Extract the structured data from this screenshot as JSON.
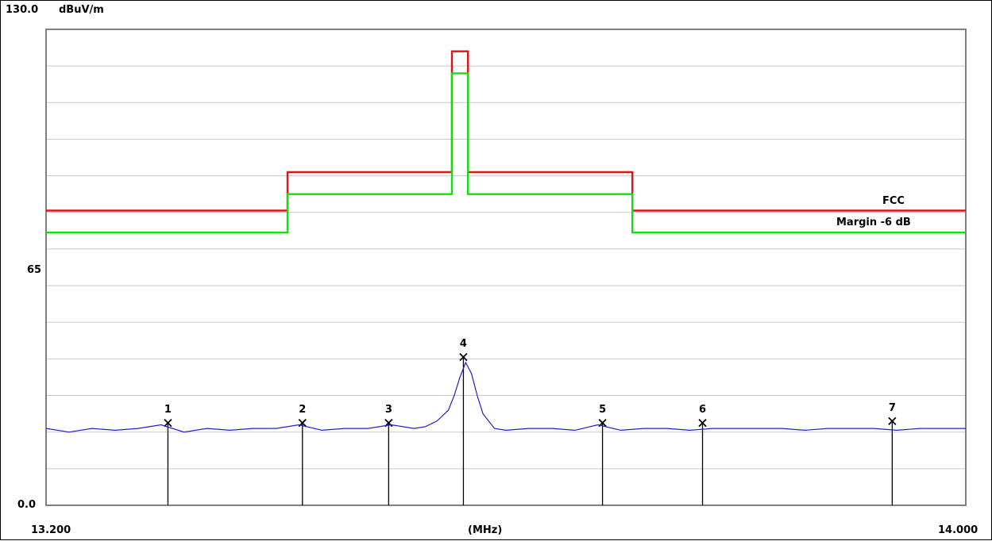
{
  "chart_data": {
    "type": "line",
    "title": "",
    "y_unit_label": "dBuV/m",
    "xlabel": "(MHz)",
    "x_range": [
      13.2,
      14.0
    ],
    "x_range_labels": [
      "13.200",
      "14.000"
    ],
    "ylim": [
      0,
      130
    ],
    "y_tick_labels": [
      {
        "value": 130,
        "text": "130.0"
      },
      {
        "value": 65,
        "text": "65"
      },
      {
        "value": 0,
        "text": "0.0"
      }
    ],
    "grid": true,
    "grid_step": 10,
    "limits": [
      {
        "name": "FCC",
        "color": "#e81010",
        "points": [
          [
            13.2,
            80.5
          ],
          [
            13.41,
            80.5
          ],
          [
            13.41,
            91
          ],
          [
            13.553,
            91
          ],
          [
            13.553,
            124
          ],
          [
            13.567,
            124
          ],
          [
            13.567,
            91
          ],
          [
            13.71,
            91
          ],
          [
            13.71,
            80.5
          ],
          [
            14.0,
            80.5
          ]
        ]
      },
      {
        "name": "Margin -6 dB",
        "color": "#10e010",
        "points": [
          [
            13.2,
            74.5
          ],
          [
            13.41,
            74.5
          ],
          [
            13.41,
            85
          ],
          [
            13.553,
            85
          ],
          [
            13.553,
            118
          ],
          [
            13.567,
            118
          ],
          [
            13.567,
            85
          ],
          [
            13.71,
            85
          ],
          [
            13.71,
            74.5
          ],
          [
            14.0,
            74.5
          ]
        ]
      }
    ],
    "series": [
      {
        "color": "#2020d0",
        "x": [
          13.2,
          13.22,
          13.24,
          13.26,
          13.28,
          13.3,
          13.32,
          13.34,
          13.36,
          13.38,
          13.4,
          13.42,
          13.44,
          13.46,
          13.48,
          13.5,
          13.52,
          13.53,
          13.54,
          13.55,
          13.555,
          13.56,
          13.565,
          13.57,
          13.575,
          13.58,
          13.59,
          13.6,
          13.62,
          13.64,
          13.66,
          13.68,
          13.7,
          13.72,
          13.74,
          13.76,
          13.78,
          13.8,
          13.82,
          13.84,
          13.86,
          13.88,
          13.9,
          13.92,
          13.94,
          13.96,
          13.98,
          14.0
        ],
        "y": [
          21,
          20,
          21,
          20.5,
          21,
          22,
          20,
          21,
          20.5,
          21,
          21,
          22,
          20.5,
          21,
          21,
          22,
          21,
          21.5,
          23,
          26,
          30,
          35,
          39,
          36,
          30,
          25,
          21,
          20.5,
          21,
          21,
          20.5,
          22,
          20.5,
          21,
          21,
          20.5,
          21,
          21,
          21,
          21,
          20.5,
          21,
          21,
          21,
          20.5,
          21,
          21,
          21
        ]
      }
    ],
    "markers": [
      {
        "label": "1",
        "x": 13.306,
        "y": 22.5
      },
      {
        "label": "2",
        "x": 13.423,
        "y": 22.5
      },
      {
        "label": "3",
        "x": 13.498,
        "y": 22.5
      },
      {
        "label": "4",
        "x": 13.563,
        "y": 40.5
      },
      {
        "label": "5",
        "x": 13.684,
        "y": 22.5
      },
      {
        "label": "6",
        "x": 13.771,
        "y": 22.5
      },
      {
        "label": "7",
        "x": 13.936,
        "y": 23
      }
    ]
  }
}
